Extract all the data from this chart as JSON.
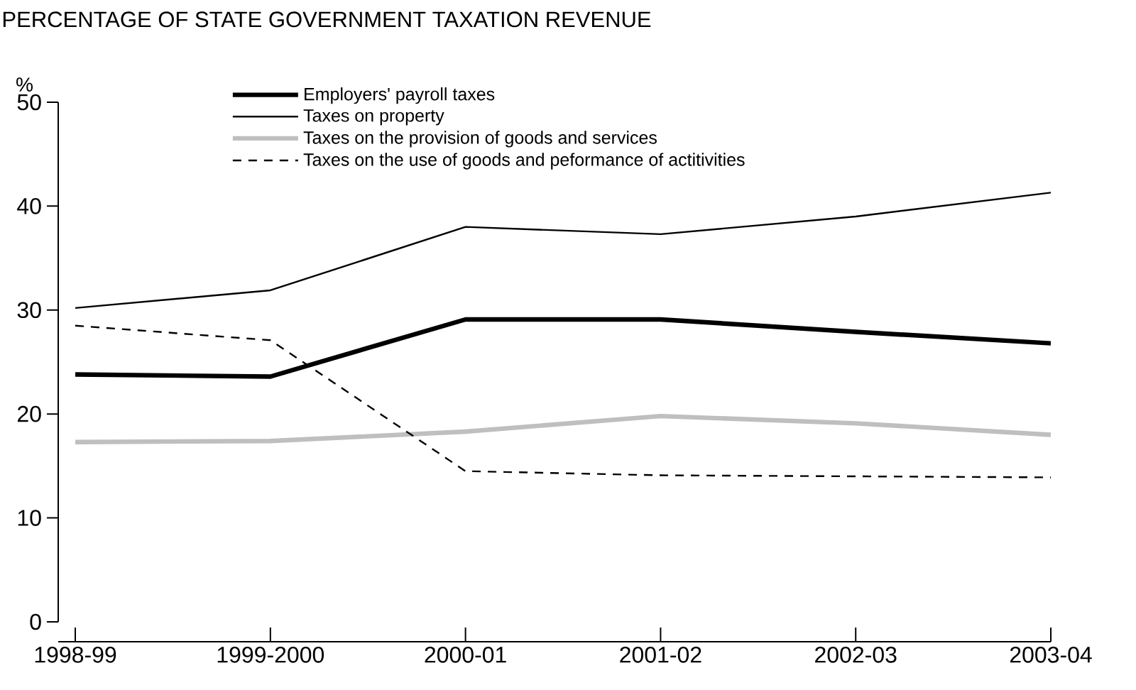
{
  "chart_data": {
    "type": "line",
    "title": "PERCENTAGE OF STATE GOVERNMENT TAXATION REVENUE",
    "ylabel": "%",
    "categories": [
      "1998-99",
      "1999-2000",
      "2000-01",
      "2001-02",
      "2002-03",
      "2003-04"
    ],
    "series": [
      {
        "name": "Employers' payroll taxes",
        "color": "#000000",
        "line_style": "solid",
        "values": [
          23.8,
          23.6,
          29.1,
          29.1,
          27.9,
          26.8
        ]
      },
      {
        "name": "Taxes on property",
        "color": "#000000",
        "line_style": "solid",
        "values": [
          30.2,
          31.9,
          38.0,
          37.3,
          39.0,
          41.3
        ]
      },
      {
        "name": "Taxes on the provision of goods and services",
        "color": "#bfbfbf",
        "line_style": "solid",
        "values": [
          17.3,
          17.4,
          18.3,
          19.8,
          19.1,
          18.0
        ]
      },
      {
        "name": "Taxes on the use of goods and peformance of actitivities",
        "color": "#000000",
        "line_style": "dashed",
        "values": [
          28.5,
          27.1,
          14.5,
          14.1,
          14.0,
          13.9
        ]
      }
    ],
    "ylim": [
      0,
      50
    ],
    "yticks": [
      0,
      10,
      20,
      30,
      40,
      50
    ],
    "grid": false,
    "legend": "top",
    "marker": "none"
  }
}
